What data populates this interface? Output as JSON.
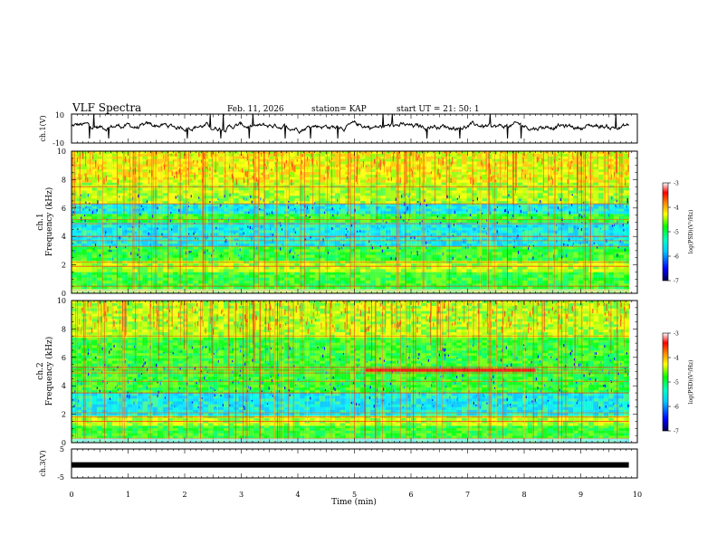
{
  "header": {
    "title": "VLF Spectra",
    "date": "Feb. 11, 2026",
    "station": "station= KAP",
    "start": "start  UT  =   21: 50: 1"
  },
  "chart_data": [
    {
      "id": "ch1-waveform",
      "type": "line",
      "title": "",
      "xlabel": "",
      "ylabel": "ch.1(V)",
      "xlim": [
        0,
        10
      ],
      "ylim": [
        -10,
        10
      ],
      "yticks": [
        "10",
        "-10"
      ],
      "trace_x_end": 9.85,
      "mean": 1.5,
      "amplitude": 3.5
    },
    {
      "id": "ch1-spectrogram",
      "type": "heatmap",
      "ylabel_line1": "ch.1",
      "ylabel_line2": "Frequency  (kHz)",
      "xlim": [
        0,
        10
      ],
      "ylim": [
        0,
        10
      ],
      "data_x_end": 9.85,
      "yticks": [
        "0",
        "2",
        "4",
        "6",
        "8",
        "10"
      ],
      "bands": [
        {
          "from": 0.0,
          "to": 0.3,
          "level": 3
        },
        {
          "from": 0.3,
          "to": 0.7,
          "level": 2
        },
        {
          "from": 0.7,
          "to": 1.5,
          "level": 2
        },
        {
          "from": 1.5,
          "to": 2.3,
          "level": 3
        },
        {
          "from": 2.3,
          "to": 3.3,
          "level": 2
        },
        {
          "from": 3.3,
          "to": 5.0,
          "level": 1
        },
        {
          "from": 5.0,
          "to": 5.6,
          "level": 2
        },
        {
          "from": 5.6,
          "to": 6.3,
          "level": 1
        },
        {
          "from": 6.3,
          "to": 7.8,
          "level": 3
        },
        {
          "from": 7.8,
          "to": 10.0,
          "level": 4
        }
      ],
      "lines_khz": [
        0.2,
        0.5,
        1.9,
        2.2,
        3.3,
        3.7,
        4.0,
        4.9,
        5.2,
        6.3,
        7.5
      ],
      "colorbar": {
        "label": "log(PSD)(V²/Hz)",
        "ticks": [
          "-3",
          "-4",
          "-5",
          "-6",
          "-7"
        ],
        "range": [
          -7,
          -3
        ]
      }
    },
    {
      "id": "ch2-spectrogram",
      "type": "heatmap",
      "ylabel_line1": "ch.2",
      "ylabel_line2": "Frequency  (kHz)",
      "xlim": [
        0,
        10
      ],
      "ylim": [
        0,
        10
      ],
      "data_x_end": 9.85,
      "yticks": [
        "0",
        "2",
        "4",
        "6",
        "8",
        "10"
      ],
      "bands": [
        {
          "from": 0.0,
          "to": 0.3,
          "level": 1
        },
        {
          "from": 0.3,
          "to": 1.2,
          "level": 2
        },
        {
          "from": 1.2,
          "to": 1.9,
          "level": 3
        },
        {
          "from": 1.9,
          "to": 3.5,
          "level": 1
        },
        {
          "from": 3.5,
          "to": 5.2,
          "level": 2
        },
        {
          "from": 5.2,
          "to": 7.4,
          "level": 2
        },
        {
          "from": 7.4,
          "to": 10.0,
          "level": 3
        }
      ],
      "lines_khz": [
        0.3,
        1.5,
        1.8,
        2.1,
        3.5,
        4.3,
        4.9,
        5.1,
        5.3,
        7.5
      ],
      "feature": {
        "t_start": 5.2,
        "t_end": 8.2,
        "freq_khz": 5.1
      },
      "colorbar": {
        "label": "log(PSD)(V²/Hz)",
        "ticks": [
          "-3",
          "-4",
          "-5",
          "-6",
          "-7"
        ],
        "range": [
          -7,
          -3
        ]
      }
    },
    {
      "id": "ch3-waveform",
      "type": "line",
      "ylabel": "ch.3(V)",
      "xlabel": "Time  (min)",
      "xlim": [
        0,
        10
      ],
      "ylim": [
        -5,
        5
      ],
      "yticks": [
        "5",
        "-5"
      ],
      "trace_x_end": 9.85,
      "trace_value": -0.5,
      "xticks": [
        "0",
        "1",
        "2",
        "3",
        "4",
        "5",
        "6",
        "7",
        "8",
        "9",
        "10"
      ]
    }
  ],
  "colors": {
    "colormap": [
      "#000060",
      "#0000ff",
      "#00c8ff",
      "#00ffd0",
      "#00ff00",
      "#ffff00",
      "#ff8000",
      "#ff0000",
      "#ffffff"
    ],
    "trace": "#000000"
  }
}
